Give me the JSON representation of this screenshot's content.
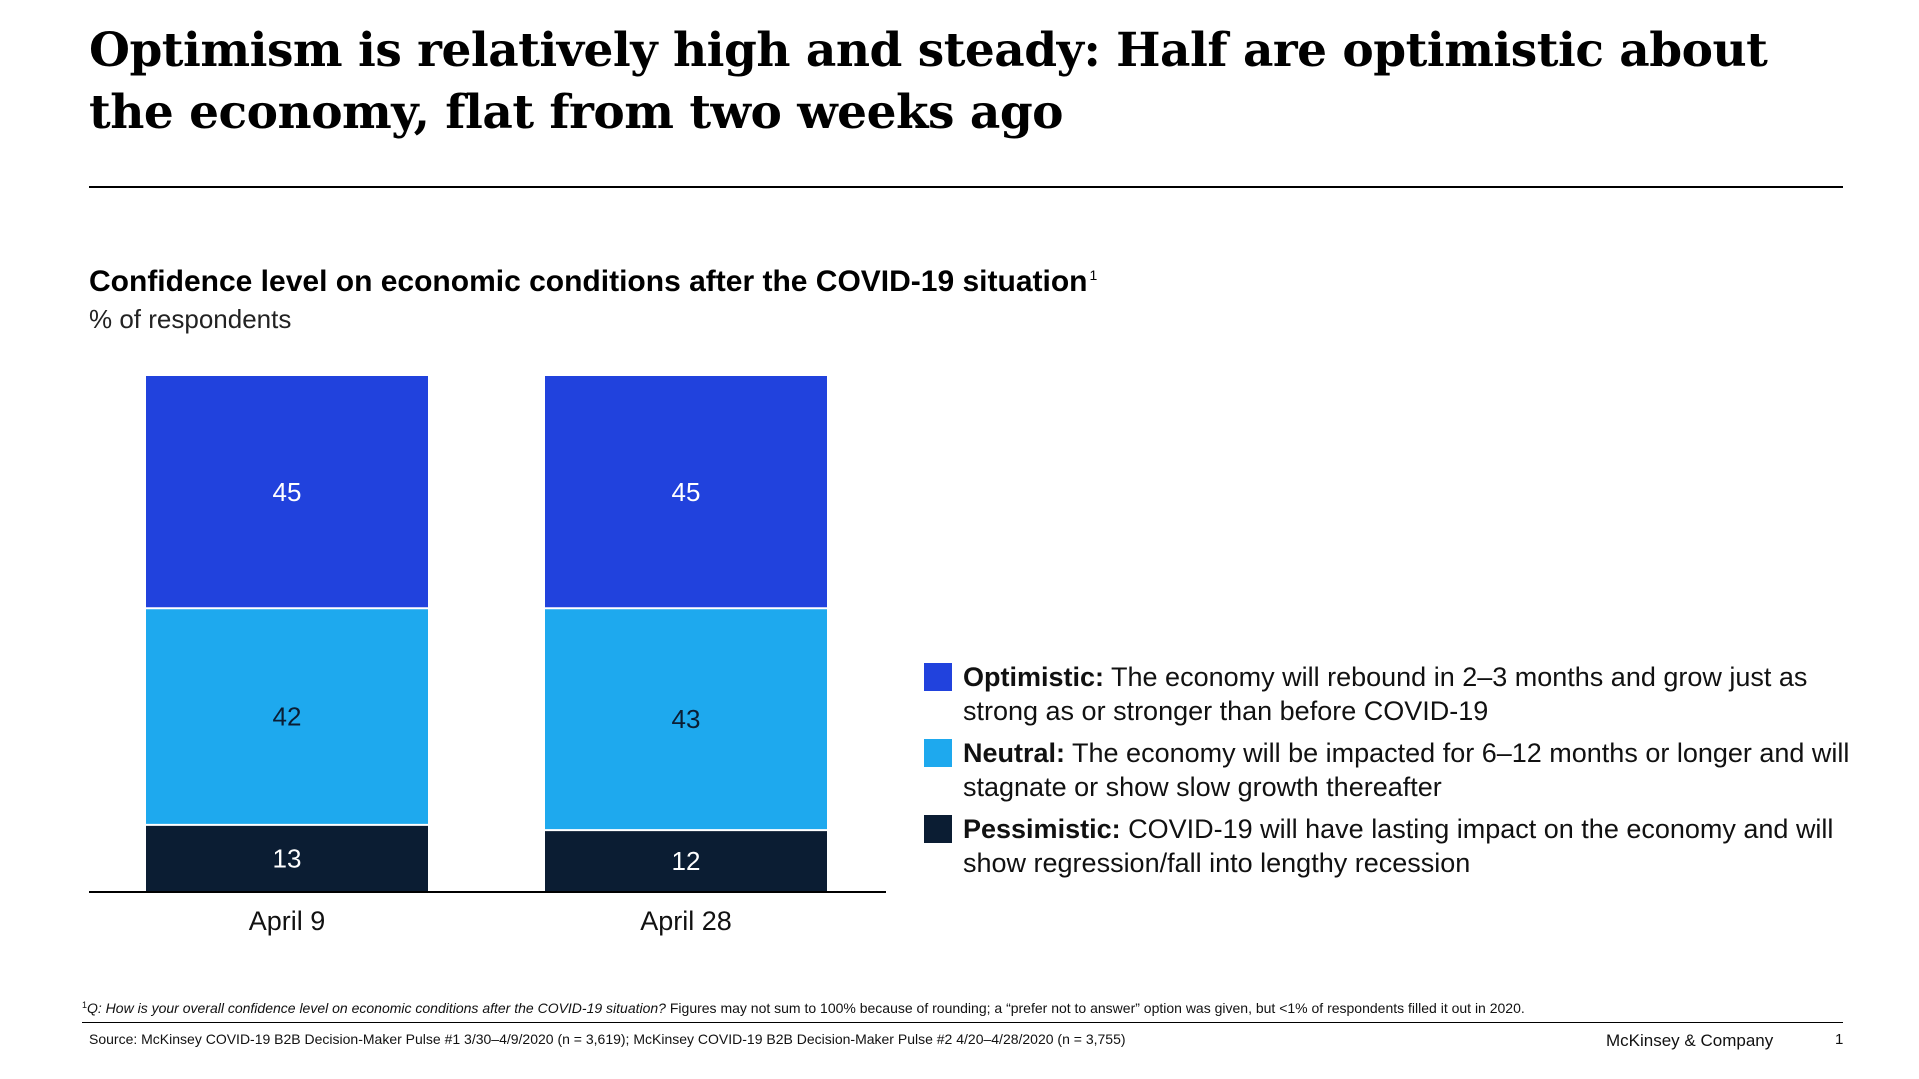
{
  "headline": "Optimism is relatively high and steady: Half are optimistic about the economy, flat from two weeks ago",
  "chart_data": {
    "type": "bar",
    "stacked": true,
    "title": "Confidence level on economic conditions after the COVID-19 situation",
    "title_footnote_marker": "1",
    "subtitle": "% of respondents",
    "categories": [
      "April 9",
      "April 28"
    ],
    "series": [
      {
        "name": "Pessimistic",
        "values": [
          13,
          12
        ],
        "color": "#0b1d33",
        "label_color": "#ffffff"
      },
      {
        "name": "Neutral",
        "values": [
          42,
          43
        ],
        "color": "#1ea9ee",
        "label_color": "#0b1d33"
      },
      {
        "name": "Optimistic",
        "values": [
          45,
          45
        ],
        "color": "#2142dd",
        "label_color": "#ffffff"
      }
    ],
    "grid": false,
    "legend_position": "right"
  },
  "legend": [
    {
      "name": "Optimistic:",
      "description": "The economy will rebound in 2–3 months and grow just as strong as or stronger than before COVID-19",
      "color": "#2142dd"
    },
    {
      "name": "Neutral:",
      "description": "The economy will be impacted for 6–12 months or longer and will stagnate or show slow growth thereafter",
      "color": "#1ea9ee"
    },
    {
      "name": "Pessimistic:",
      "description": "COVID-19 will have lasting impact on the economy and will show regression/fall into lengthy recession",
      "color": "#0b1d33"
    }
  ],
  "footnote": {
    "marker": "1",
    "question": "Q: How is your overall confidence level on economic conditions after the COVID-19 situation?",
    "text": "Figures may not sum to 100% because of rounding; a “prefer not to answer” option was given, but <1% of respondents filled it out in 2020."
  },
  "source": "Source: McKinsey COVID-19 B2B Decision-Maker Pulse #1 3/30–4/9/2020 (n = 3,619); McKinsey COVID-19 B2B Decision-Maker Pulse #2 4/20–4/28/2020 (n = 3,755)",
  "brand": "McKinsey & Company",
  "page_number": "1"
}
